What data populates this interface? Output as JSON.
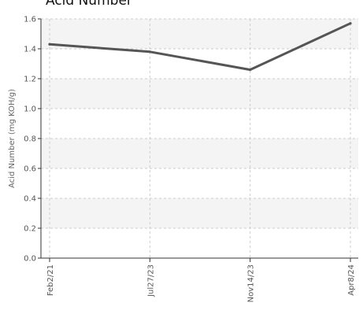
{
  "chart_data": {
    "type": "line",
    "title": "Acid Number",
    "ylabel": "Acid Number (mg KOH/g)",
    "xlabel": "",
    "categories": [
      "Feb2/21",
      "Jul27/23",
      "Nov14/23",
      "Apr8/24"
    ],
    "series": [
      {
        "values": [
          1.43,
          1.38,
          1.26,
          1.57
        ]
      }
    ],
    "ylim": [
      0,
      1.6
    ],
    "yticks": [
      "0.0",
      "0.2",
      "0.4",
      "0.6",
      "0.8",
      "1.0",
      "1.2",
      "1.4",
      "1.6"
    ],
    "grid": true,
    "legend": "none",
    "colors": {
      "line": "#555555",
      "band": "#f4f4f4",
      "grid": "#cccccc",
      "axis": "#333333"
    }
  }
}
